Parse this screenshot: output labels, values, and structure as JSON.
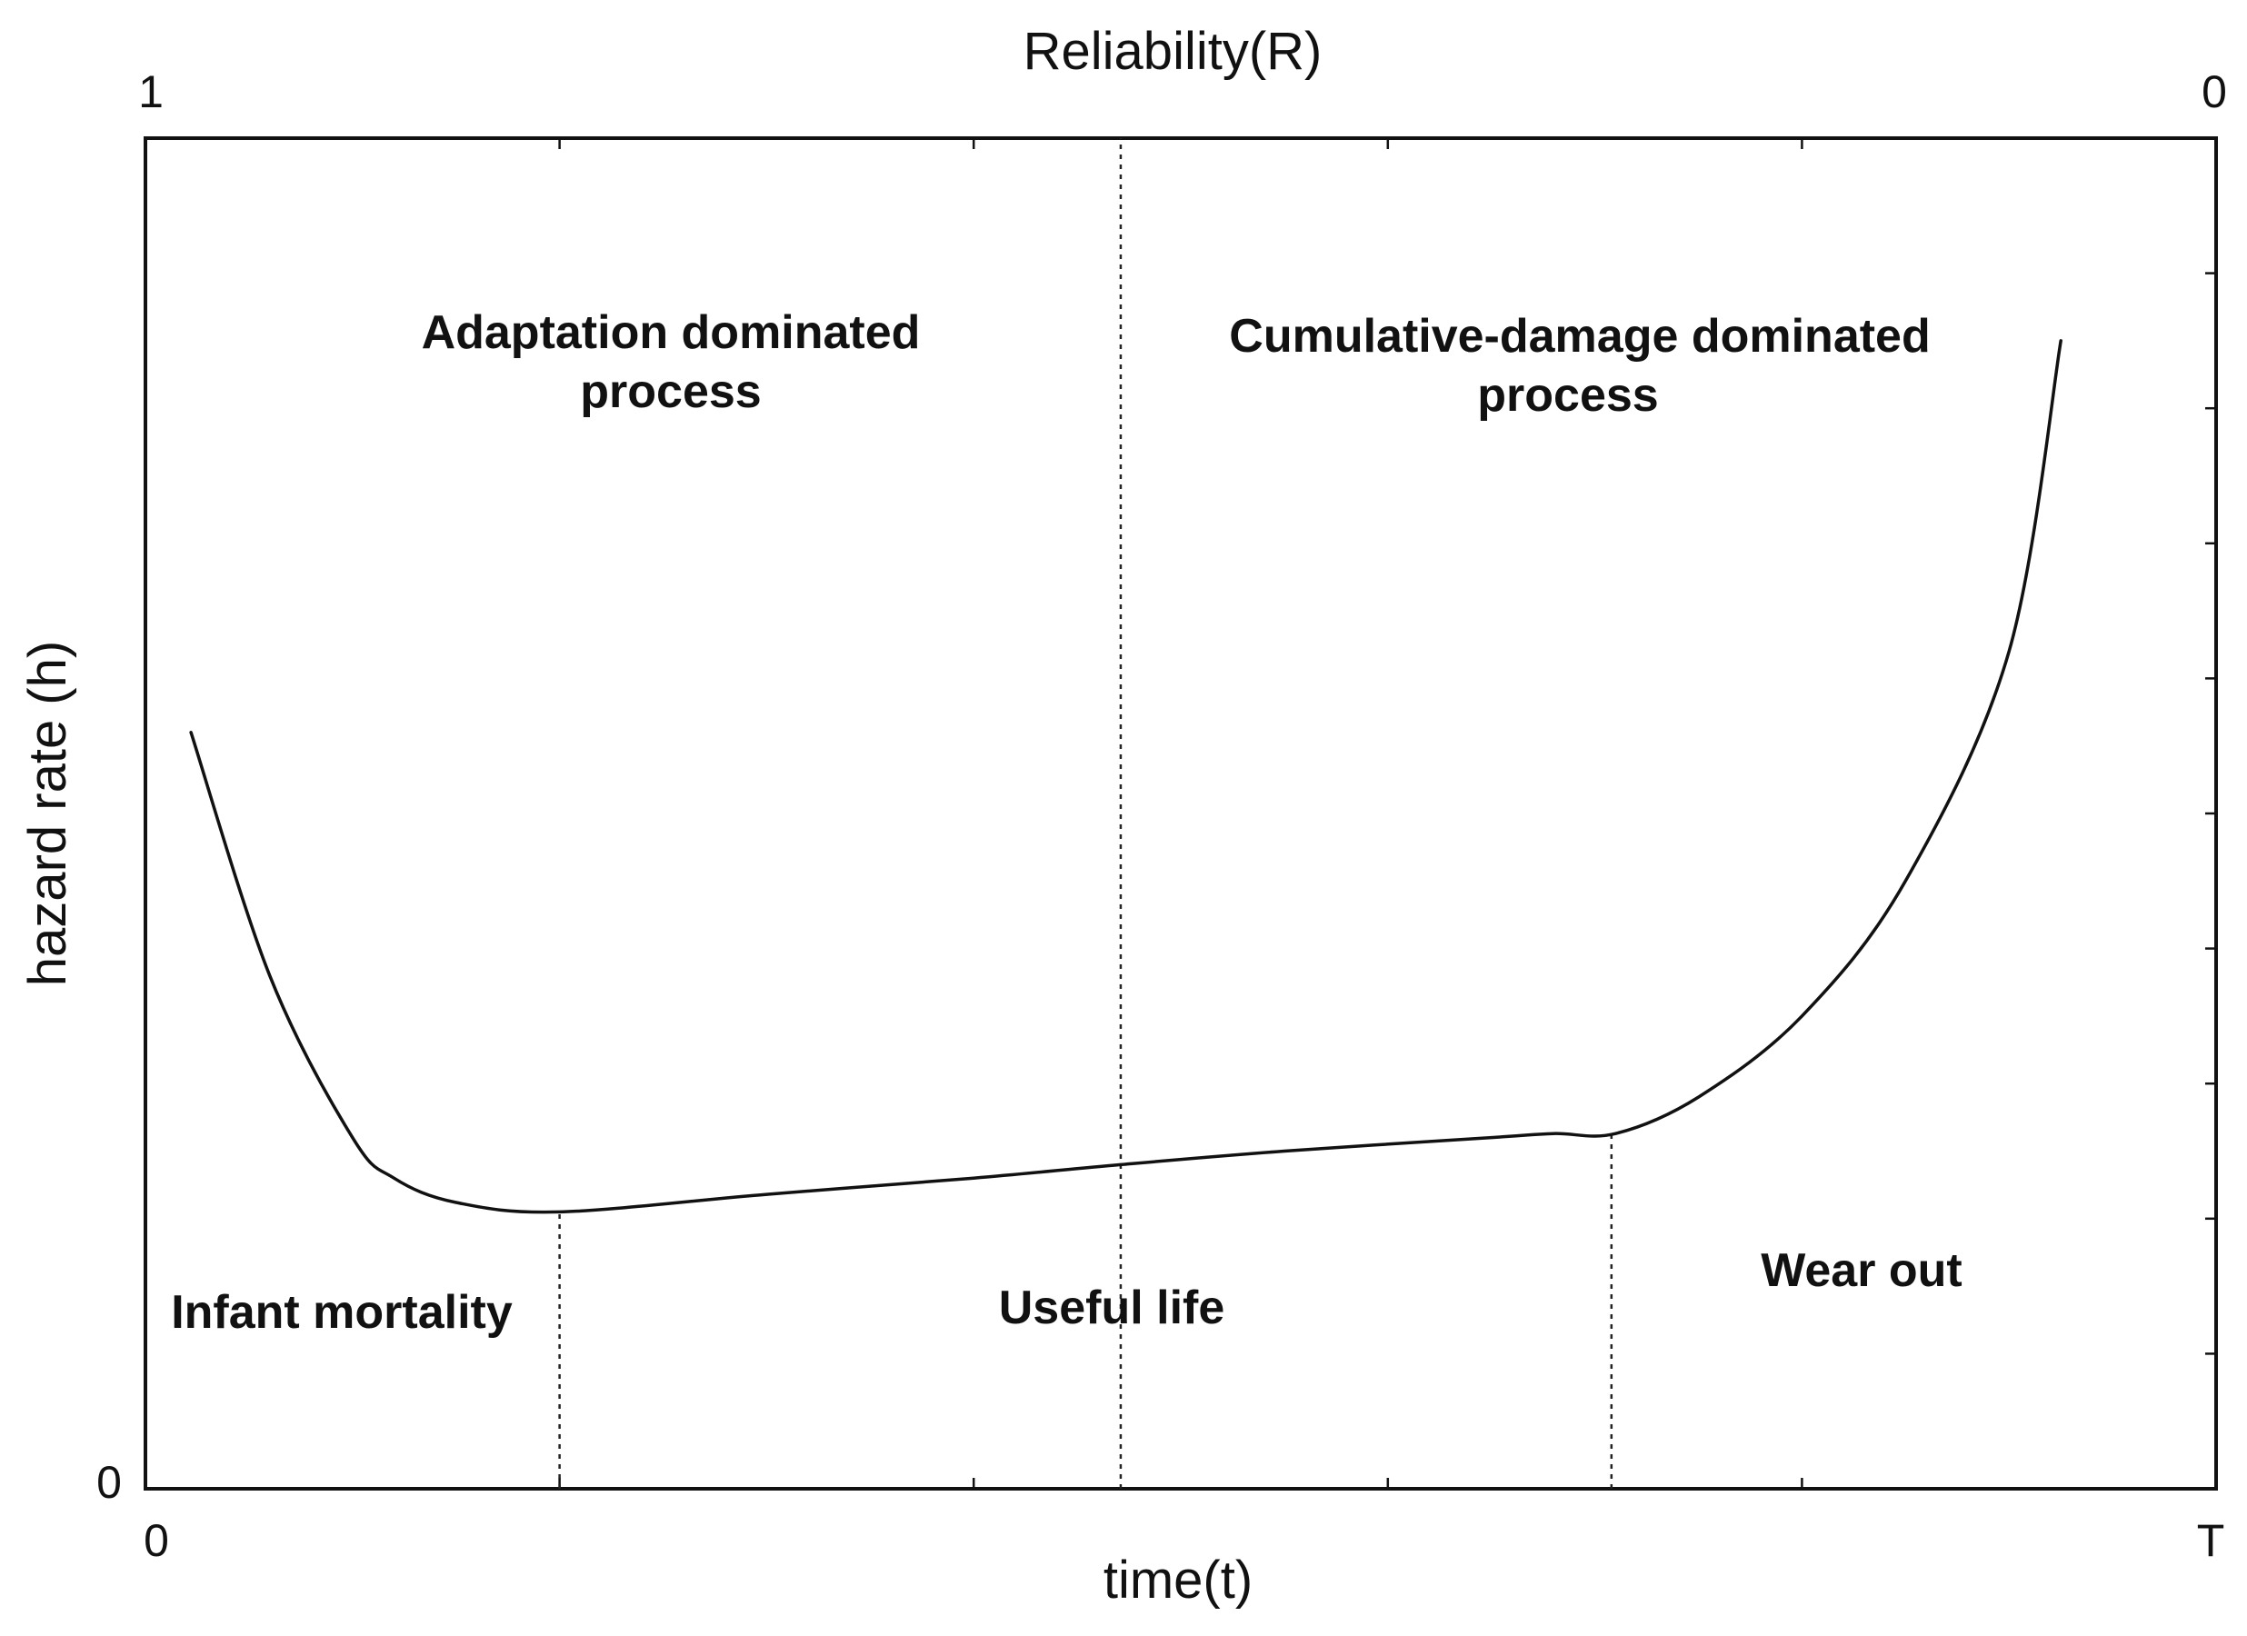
{
  "chart_data": {
    "type": "line",
    "title": "",
    "xlabel": "time(t)",
    "ylabel": "hazard rate (h)",
    "top_axis_label": "Reliability(R)",
    "x_tick_labels": {
      "start": "0",
      "end": "T"
    },
    "y_tick_labels": {
      "bottom": "0"
    },
    "top_tick_labels": {
      "start": "1",
      "end": "0"
    },
    "xlim": [
      0,
      1
    ],
    "ylim": [
      0,
      1
    ],
    "series": [
      {
        "name": "hazard rate",
        "x": [
          0.022,
          0.06,
          0.1,
          0.12,
          0.15,
          0.2,
          0.3,
          0.4,
          0.471,
          0.55,
          0.65,
          0.68,
          0.71,
          0.75,
          0.8,
          0.85,
          0.9,
          0.925
        ],
        "y": [
          0.56,
          0.38,
          0.26,
          0.23,
          0.212,
          0.205,
          0.218,
          0.23,
          0.24,
          0.25,
          0.26,
          0.263,
          0.263,
          0.29,
          0.35,
          0.45,
          0.62,
          0.85
        ]
      }
    ],
    "dividers": [
      {
        "x": 0.2,
        "y_top": 0.205
      },
      {
        "x": 0.471,
        "y_top": 1.0
      },
      {
        "x": 0.708,
        "y_top": 0.263
      }
    ],
    "regions": [
      {
        "label": "Infant mortality"
      },
      {
        "label": "Useful life"
      },
      {
        "label": "Wear out"
      }
    ],
    "processes": [
      {
        "line1": "Adaptation dominated",
        "line2": "process"
      },
      {
        "line1": "Cumulative-damage dominated",
        "line2": "process"
      }
    ]
  }
}
